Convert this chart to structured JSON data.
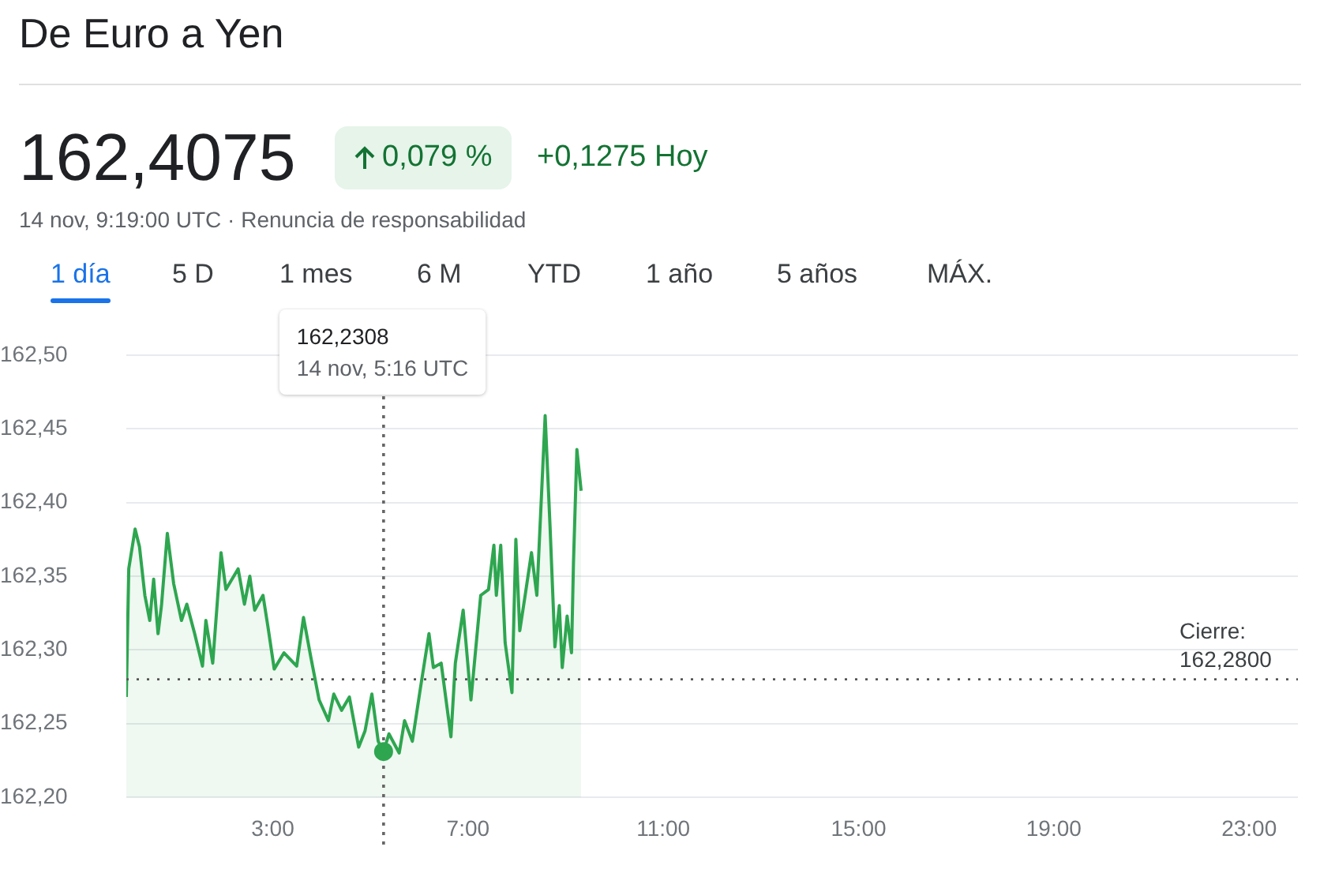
{
  "chart_data": {
    "type": "area",
    "title": "De Euro a Yen",
    "annotations": [
      "162,4075",
      "0,079 %",
      "+0,1275 Hoy",
      "14 nov, 9:19:00 UTC · Renuncia de responsabilidad",
      "1 día",
      "5 D",
      "1 mes",
      "6 M",
      "YTD",
      "1 año",
      "5 años",
      "MÁX.",
      "162,2308\n14 nov, 5:16 UTC"
    ],
    "x": [
      0,
      0.05,
      0.18,
      0.27,
      0.38,
      0.48,
      0.56,
      0.65,
      0.72,
      0.84,
      0.97,
      1.13,
      1.24,
      1.4,
      1.56,
      1.63,
      1.77,
      1.94,
      2.04,
      2.29,
      2.42,
      2.53,
      2.63,
      2.8,
      2.9,
      3.03,
      3.23,
      3.49,
      3.63,
      3.78,
      3.95,
      4.14,
      4.25,
      4.41,
      4.57,
      4.76,
      4.89,
      5.03,
      5.16,
      5.27,
      5.38,
      5.59,
      5.7,
      5.86,
      6.02,
      6.2,
      6.29,
      6.45,
      6.65,
      6.74,
      6.9,
      7.06,
      7.26,
      7.42,
      7.53,
      7.58,
      7.67,
      7.76,
      7.9,
      7.98,
      8.06,
      8.17,
      8.3,
      8.41,
      8.58,
      8.68,
      8.78,
      8.87,
      8.93,
      9.03,
      9.12,
      9.16,
      9.23,
      9.317
    ],
    "series": [
      {
        "color": "#2ea650",
        "values": [
          162.268,
          162.355,
          162.382,
          162.37,
          162.337,
          162.32,
          162.348,
          162.311,
          162.33,
          162.379,
          162.345,
          162.32,
          162.331,
          162.311,
          162.289,
          162.32,
          162.291,
          162.366,
          162.341,
          162.355,
          162.331,
          162.35,
          162.327,
          162.337,
          162.316,
          162.287,
          162.298,
          162.289,
          162.322,
          162.295,
          162.266,
          162.252,
          162.27,
          162.259,
          162.268,
          162.234,
          162.245,
          162.27,
          162.238,
          162.231,
          162.243,
          162.23,
          162.252,
          162.238,
          162.273,
          162.311,
          162.288,
          162.291,
          162.241,
          162.291,
          162.327,
          162.266,
          162.337,
          162.341,
          162.371,
          162.337,
          162.371,
          162.305,
          162.271,
          162.375,
          162.313,
          162.337,
          162.366,
          162.337,
          162.459,
          162.384,
          162.302,
          162.33,
          162.288,
          162.323,
          162.298,
          162.359,
          162.436,
          162.408
        ]
      }
    ],
    "xlim": [
      0,
      24
    ],
    "xticks": [
      {
        "value": 3,
        "label": "3:00"
      },
      {
        "value": 7,
        "label": "7:00"
      },
      {
        "value": 11,
        "label": "11:00"
      },
      {
        "value": 15,
        "label": "15:00"
      },
      {
        "value": 19,
        "label": "19:00"
      },
      {
        "value": 23,
        "label": "23:00"
      }
    ],
    "ylim": [
      162.2,
      162.5
    ],
    "yticks": [
      {
        "value": 162.2,
        "label": "162,20"
      },
      {
        "value": 162.25,
        "label": "162,25"
      },
      {
        "value": 162.3,
        "label": "162,30"
      },
      {
        "value": 162.35,
        "label": "162,35"
      },
      {
        "value": 162.4,
        "label": "162,40"
      },
      {
        "value": 162.45,
        "label": "162,45"
      },
      {
        "value": 162.5,
        "label": "162,50"
      }
    ],
    "grid": "y",
    "legend": false,
    "marker": "none",
    "line_style": "solid",
    "ref_lines": [
      {
        "axis": "x",
        "value": 5.27,
        "line_style": "dotted",
        "color": "#666666"
      },
      {
        "axis": "y",
        "value": 162.28,
        "label": "Cierre:\n162,2800",
        "line_style": "dotted",
        "color": "#555555"
      }
    ]
  }
}
